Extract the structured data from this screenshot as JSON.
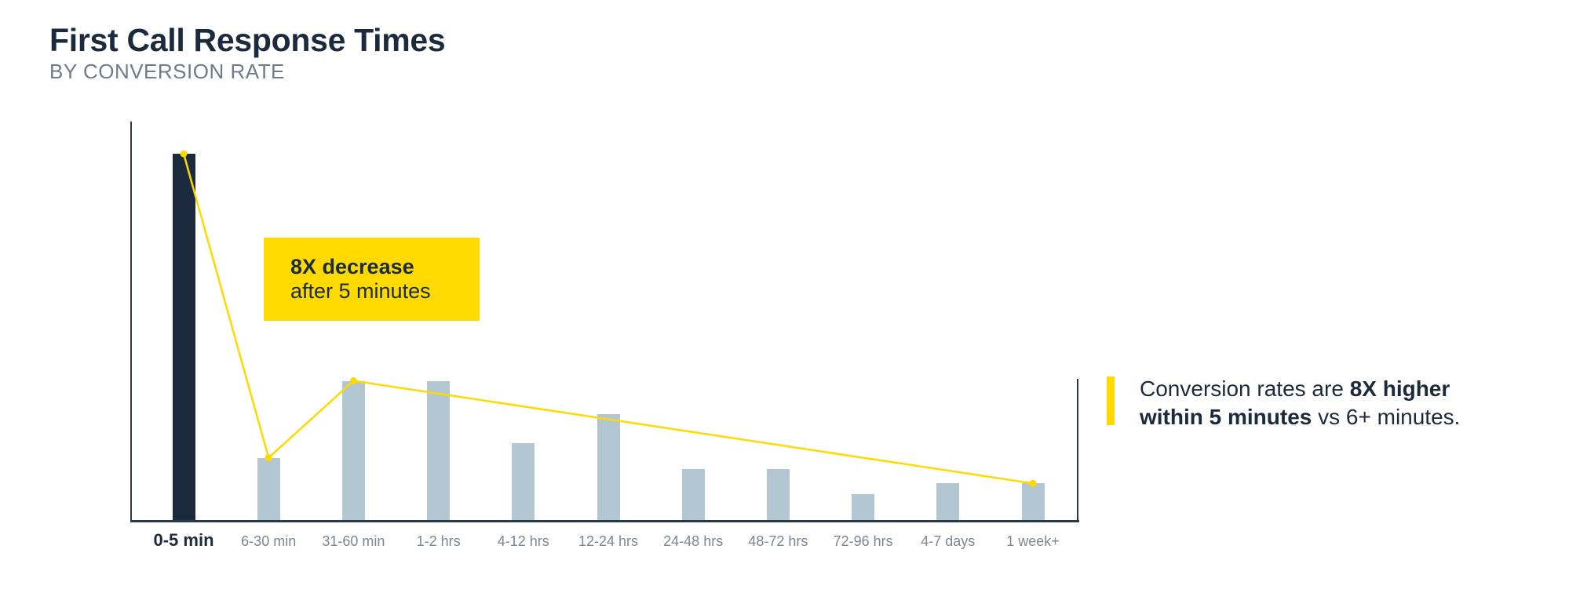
{
  "header": {
    "title": "First Call Response Times",
    "subtitle": "BY CONVERSION RATE"
  },
  "colors": {
    "highlight_bar": "#1b2a3d",
    "bar": "#b3c7d3",
    "accent_yellow": "#ffda00",
    "axis": "#2a3947"
  },
  "chart_data": {
    "type": "bar",
    "title": "First Call Response Times",
    "subtitle": "BY CONVERSION RATE",
    "xlabel": "",
    "ylabel": "",
    "categories": [
      "0-5 min",
      "6-30 min",
      "31-60 min",
      "1-2 hrs",
      "4-12 hrs",
      "12-24 hrs",
      "24-48 hrs",
      "48-72 hrs",
      "72-96 hrs",
      "4-7 days",
      "1 week+"
    ],
    "values": [
      100,
      17,
      38,
      38,
      21,
      29,
      14,
      14,
      7,
      10,
      10
    ],
    "value_units": "relative conversion rate (0-5 min = 100, estimated from bar heights; no y-axis ticks shown)",
    "highlighted_category": "0-5 min",
    "ylim": [
      0,
      108
    ],
    "grid": false,
    "y_ticks_shown": false,
    "trend_line": {
      "color": "#ffda00",
      "points": [
        {
          "category": "0-5 min",
          "value": 100
        },
        {
          "category": "6-30 min",
          "value": 17
        },
        {
          "category": "31-60 min",
          "value": 38
        },
        {
          "category": "1 week+",
          "value": 10
        }
      ]
    },
    "annotations": [
      {
        "type": "callout_box",
        "bold": "8X decrease",
        "text": "after 5 minutes"
      },
      {
        "type": "side_note",
        "text": "Conversion rates are 8X higher within 5 minutes vs 6+ minutes."
      }
    ]
  },
  "callout": {
    "bold": "8X decrease",
    "text": "after 5 minutes"
  },
  "side_note": {
    "part1": "Conversion rates are ",
    "bold1": "8X higher",
    "bold2": "within 5 minutes",
    "part2": " vs 6+ minutes."
  }
}
